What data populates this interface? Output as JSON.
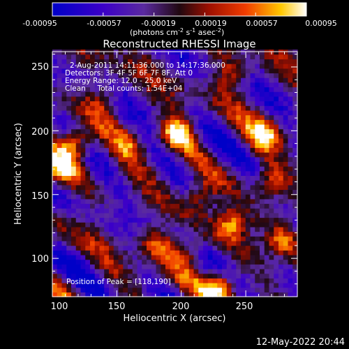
{
  "chart_data": {
    "type": "heatmap",
    "title": "Reconstructed RHESSI Image",
    "xlabel": "Heliocentric X (arcsec)",
    "ylabel": "Heliocentric Y (arcsec)",
    "xlim": [
      100,
      290
    ],
    "ylim": [
      70,
      262
    ],
    "x_ticks": [
      100,
      150,
      200,
      250
    ],
    "y_ticks": [
      100,
      150,
      200,
      250
    ],
    "colorbar": {
      "range": [
        -0.00095,
        0.00095
      ],
      "ticks": [
        "-0.00095",
        "-0.00057",
        "-0.00019",
        "0.00019",
        "0.00057",
        "0.00095"
      ],
      "label_prefix": "(photons cm",
      "label_exp1": "-2",
      "label_mid1": " s",
      "label_exp2": "-1",
      "label_mid2": " asec",
      "label_exp3": "-2",
      "label_suffix": ")",
      "colormap": "blue-purple-red-yellow-white"
    },
    "annotations": {
      "time_range": "2-Aug-2011 14:11:36.000 to 14:17:36.000",
      "detectors": "Detectors: 3F 4F 5F 6F 7F 8F, Att 0",
      "energy": "Energy Range: 12.0 - 25.0 keV",
      "clean": "Clean     Total counts: 1.54E+04",
      "peak": "Position of Peak = [118,190]"
    },
    "peaks": [
      {
        "x": 118,
        "y": 190,
        "amp": 1.0
      },
      {
        "x": 197,
        "y": 198,
        "amp": 0.95
      },
      {
        "x": 230,
        "y": 78,
        "amp": 0.95
      },
      {
        "x": 105,
        "y": 170,
        "amp": 0.7
      },
      {
        "x": 182,
        "y": 112,
        "amp": 0.65
      },
      {
        "x": 240,
        "y": 128,
        "amp": 0.75
      },
      {
        "x": 265,
        "y": 198,
        "amp": 0.75
      },
      {
        "x": 270,
        "y": 160,
        "amp": 0.65
      },
      {
        "x": 215,
        "y": 150,
        "amp": 0.6
      },
      {
        "x": 240,
        "y": 245,
        "amp": 0.6
      },
      {
        "x": 278,
        "y": 115,
        "amp": 0.6
      },
      {
        "x": 160,
        "y": 190,
        "amp": 0.4
      },
      {
        "x": 205,
        "y": 105,
        "amp": 0.55
      },
      {
        "x": 140,
        "y": 225,
        "amp": 0.45
      }
    ],
    "timestamp": "12-May-2022 20:44"
  }
}
